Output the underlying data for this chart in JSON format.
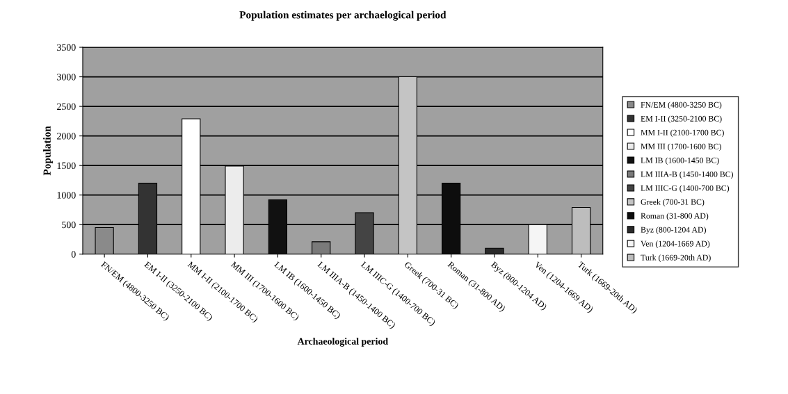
{
  "chart_data": {
    "type": "bar",
    "title": "Population estimates per archaelogical period",
    "xlabel": "Archaeological period",
    "ylabel": "Population",
    "categories": [
      "FN/EM (4800-3250 BC)",
      "EM I-II (3250-2100 BC)",
      "MM I-II (2100-1700 BC)",
      "MM III (1700-1600 BC)",
      "LM IB (1600-1450 BC)",
      "LM IIIA-B (1450-1400 BC)",
      "LM IIIC-G (1400-700 BC)",
      "Greek (700-31 BC)",
      "Roman (31-800 AD)",
      "Byz (800-1204 AD)",
      "Ven (1204-1669 AD)",
      "Turk (1669-20th AD)"
    ],
    "series": [
      {
        "name": "FN/EM (4800-3250 BC)",
        "color": "#8a8a8a",
        "values": [
          450,
          null,
          null,
          null,
          null,
          null,
          null,
          null,
          null,
          null,
          null,
          null
        ]
      },
      {
        "name": "EM I-II (3250-2100 BC)",
        "color": "#333333",
        "values": [
          null,
          1200,
          null,
          null,
          null,
          null,
          null,
          null,
          null,
          null,
          null,
          null
        ]
      },
      {
        "name": "MM I-II (2100-1700 BC)",
        "color": "#ffffff",
        "values": [
          null,
          null,
          2290,
          null,
          null,
          null,
          null,
          null,
          null,
          null,
          null,
          null
        ]
      },
      {
        "name": "MM III (1700-1600 BC)",
        "color": "#ececec",
        "values": [
          null,
          null,
          null,
          1490,
          null,
          null,
          null,
          null,
          null,
          null,
          null,
          null
        ]
      },
      {
        "name": "LM IB (1600-1450 BC)",
        "color": "#111111",
        "values": [
          null,
          null,
          null,
          null,
          920,
          null,
          null,
          null,
          null,
          null,
          null,
          null
        ]
      },
      {
        "name": "LM IIIA-B (1450-1400 BC)",
        "color": "#7a7a7a",
        "values": [
          null,
          null,
          null,
          null,
          null,
          210,
          null,
          null,
          null,
          null,
          null,
          null
        ]
      },
      {
        "name": "LM IIIC-G (1400-700 BC)",
        "color": "#444444",
        "values": [
          null,
          null,
          null,
          null,
          null,
          null,
          700,
          null,
          null,
          null,
          null,
          null
        ]
      },
      {
        "name": "Greek (700-31 BC)",
        "color": "#c4c4c4",
        "values": [
          null,
          null,
          null,
          null,
          null,
          null,
          null,
          3000,
          null,
          null,
          null,
          null
        ]
      },
      {
        "name": "Roman (31-800 AD)",
        "color": "#0d0d0d",
        "values": [
          null,
          null,
          null,
          null,
          null,
          null,
          null,
          null,
          1200,
          null,
          null,
          null
        ]
      },
      {
        "name": "Byz (800-1204 AD)",
        "color": "#2a2a2a",
        "values": [
          null,
          null,
          null,
          null,
          null,
          null,
          null,
          null,
          null,
          100,
          null,
          null
        ]
      },
      {
        "name": "Ven (1204-1669 AD)",
        "color": "#f5f5f5",
        "values": [
          null,
          null,
          null,
          null,
          null,
          null,
          null,
          null,
          null,
          null,
          500,
          null
        ]
      },
      {
        "name": "Turk (1669-20th AD)",
        "color": "#bdbdbd",
        "values": [
          null,
          null,
          null,
          null,
          null,
          null,
          null,
          null,
          null,
          null,
          null,
          790
        ]
      }
    ],
    "ylim": [
      0,
      3500
    ],
    "yticks": [
      0,
      500,
      1000,
      1500,
      2000,
      2500,
      3000,
      3500
    ],
    "grid": "y",
    "legend": "right"
  }
}
